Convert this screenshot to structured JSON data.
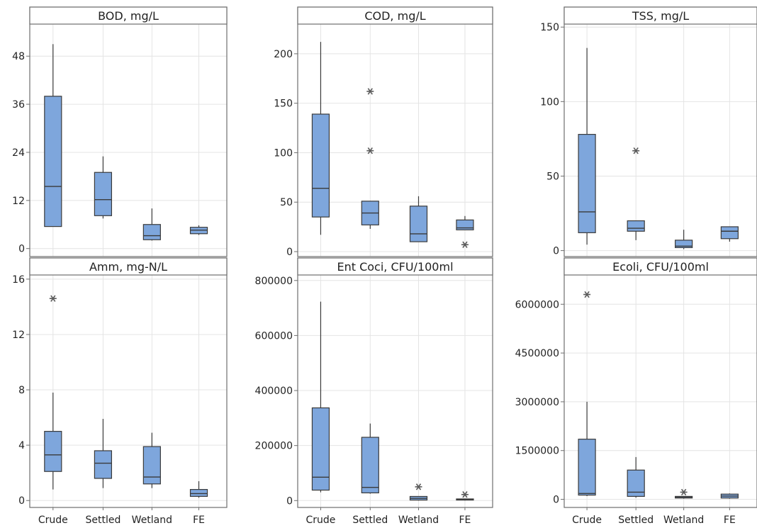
{
  "chart_data": [
    {
      "type": "box",
      "title": "BOD, mg/L",
      "categories": [
        "Crude",
        "Settled",
        "Wetland",
        "FE"
      ],
      "ylim": [
        -2,
        56
      ],
      "yticks": [
        0,
        12,
        24,
        36,
        48
      ],
      "ytick_labels": [
        "0",
        "12",
        "24",
        "36",
        "48"
      ],
      "boxes": [
        {
          "min": 5.5,
          "q1": 5.5,
          "median": 15.5,
          "q3": 38,
          "max": 51,
          "outliers": []
        },
        {
          "min": 7.5,
          "q1": 8.2,
          "median": 12.2,
          "q3": 19,
          "max": 23,
          "outliers": []
        },
        {
          "min": 2.0,
          "q1": 2.2,
          "median": 3.2,
          "q3": 6.0,
          "max": 10,
          "outliers": []
        },
        {
          "min": 3.4,
          "q1": 3.7,
          "median": 4.6,
          "q3": 5.3,
          "max": 5.8,
          "outliers": []
        }
      ],
      "grid": true
    },
    {
      "type": "box",
      "title": "COD, mg/L",
      "categories": [
        "Crude",
        "Settled",
        "Wetland",
        "FE"
      ],
      "ylim": [
        -5,
        230
      ],
      "yticks": [
        0,
        50,
        100,
        150,
        200
      ],
      "ytick_labels": [
        "0",
        "50",
        "100",
        "150",
        "200"
      ],
      "boxes": [
        {
          "min": 17,
          "q1": 35,
          "median": 64,
          "q3": 139,
          "max": 212,
          "outliers": []
        },
        {
          "min": 23,
          "q1": 27,
          "median": 39,
          "q3": 51,
          "max": 51,
          "outliers": [
            102,
            162
          ]
        },
        {
          "min": 10,
          "q1": 10,
          "median": 18,
          "q3": 46,
          "max": 56,
          "outliers": []
        },
        {
          "min": 22,
          "q1": 22,
          "median": 24,
          "q3": 32,
          "max": 36,
          "outliers": [
            7
          ]
        }
      ],
      "grid": true
    },
    {
      "type": "box",
      "title": "TSS, mg/L",
      "categories": [
        "Crude",
        "Settled",
        "Wetland",
        "FE"
      ],
      "ylim": [
        -4,
        152
      ],
      "yticks": [
        0,
        50,
        100,
        150
      ],
      "ytick_labels": [
        "0",
        "50",
        "100",
        "150"
      ],
      "boxes": [
        {
          "min": 4,
          "q1": 12,
          "median": 26,
          "q3": 78,
          "max": 136,
          "outliers": []
        },
        {
          "min": 7,
          "q1": 13,
          "median": 15,
          "q3": 20,
          "max": 20,
          "outliers": [
            67
          ]
        },
        {
          "min": 1,
          "q1": 2,
          "median": 3,
          "q3": 7,
          "max": 14,
          "outliers": []
        },
        {
          "min": 6,
          "q1": 8,
          "median": 13,
          "q3": 16,
          "max": 16,
          "outliers": []
        }
      ],
      "grid": true
    },
    {
      "type": "box",
      "title": "Amm, mg-N/L",
      "categories": [
        "Crude",
        "Settled",
        "Wetland",
        "FE"
      ],
      "ylim": [
        -0.5,
        16.3
      ],
      "yticks": [
        0,
        4,
        8,
        12,
        16
      ],
      "ytick_labels": [
        "0",
        "4",
        "8",
        "12",
        "16"
      ],
      "boxes": [
        {
          "min": 0.8,
          "q1": 2.1,
          "median": 3.3,
          "q3": 5.0,
          "max": 7.8,
          "outliers": [
            14.6
          ]
        },
        {
          "min": 0.9,
          "q1": 1.6,
          "median": 2.7,
          "q3": 3.6,
          "max": 5.9,
          "outliers": []
        },
        {
          "min": 0.9,
          "q1": 1.2,
          "median": 1.7,
          "q3": 3.9,
          "max": 4.9,
          "outliers": []
        },
        {
          "min": 0.2,
          "q1": 0.3,
          "median": 0.5,
          "q3": 0.8,
          "max": 1.4,
          "outliers": []
        }
      ],
      "grid": true
    },
    {
      "type": "box",
      "title": "Ent Coci, CFU/100ml",
      "categories": [
        "Crude",
        "Settled",
        "Wetland",
        "FE"
      ],
      "ylim": [
        -25000,
        820000
      ],
      "yticks": [
        0,
        200000,
        400000,
        600000,
        800000
      ],
      "ytick_labels": [
        "0",
        "200000",
        "400000",
        "600000",
        "800000"
      ],
      "boxes": [
        {
          "min": 30000,
          "q1": 38000,
          "median": 85000,
          "q3": 337000,
          "max": 723000,
          "outliers": []
        },
        {
          "min": 25000,
          "q1": 28000,
          "median": 48000,
          "q3": 230000,
          "max": 280000,
          "outliers": []
        },
        {
          "min": 0,
          "q1": 2000,
          "median": 8000,
          "q3": 15000,
          "max": 15000,
          "outliers": [
            50000
          ]
        },
        {
          "min": 0,
          "q1": 2000,
          "median": 4000,
          "q3": 6000,
          "max": 6000,
          "outliers": [
            22000
          ]
        }
      ],
      "grid": true
    },
    {
      "type": "box",
      "title": "Ecoli, CFU/100ml",
      "categories": [
        "Crude",
        "Settled",
        "Wetland",
        "FE"
      ],
      "ylim": [
        -250000,
        6900000
      ],
      "yticks": [
        0,
        1500000,
        3000000,
        4500000,
        6000000
      ],
      "ytick_labels": [
        "0",
        "1500000",
        "3000000",
        "4500000",
        "6000000"
      ],
      "boxes": [
        {
          "min": 100000,
          "q1": 130000,
          "median": 180000,
          "q3": 1850000,
          "max": 3000000,
          "outliers": [
            6300000
          ]
        },
        {
          "min": 50000,
          "q1": 90000,
          "median": 220000,
          "q3": 900000,
          "max": 1300000,
          "outliers": []
        },
        {
          "min": 20000,
          "q1": 40000,
          "median": 60000,
          "q3": 90000,
          "max": 90000,
          "outliers": [
            220000
          ]
        },
        {
          "min": 20000,
          "q1": 40000,
          "median": 100000,
          "q3": 160000,
          "max": 180000,
          "outliers": []
        }
      ],
      "grid": true
    }
  ],
  "colors": {
    "box_fill": "#7ea6dc",
    "grid": "#e4e4e4",
    "frame": "#6e6e6e"
  }
}
